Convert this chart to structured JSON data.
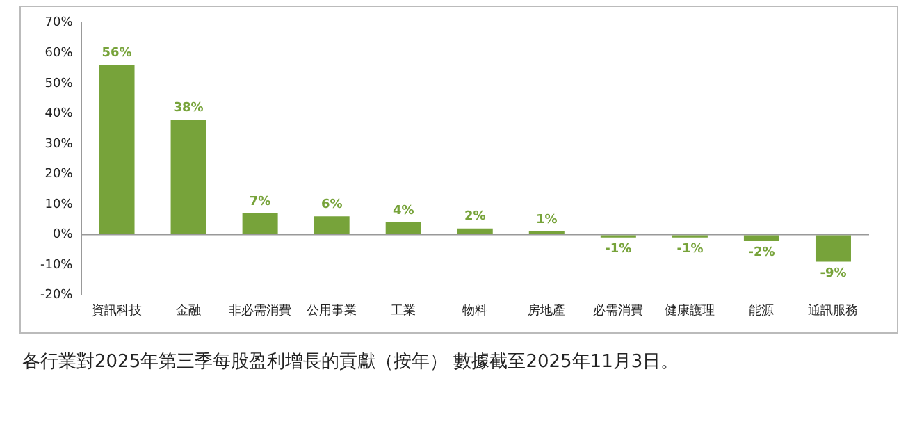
{
  "chart_data": {
    "type": "bar",
    "categories": [
      "資訊科技",
      "金融",
      "非必需消費",
      "公用事業",
      "工業",
      "物料",
      "房地產",
      "必需消費",
      "健康護理",
      "能源",
      "通訊服務"
    ],
    "values": [
      56,
      38,
      7,
      6,
      4,
      2,
      1,
      -1,
      -1,
      -2,
      -9
    ],
    "value_labels": [
      "56%",
      "38%",
      "7%",
      "6%",
      "4%",
      "2%",
      "1%",
      "-1%",
      "-1%",
      "-2%",
      "-9%"
    ],
    "color": "#77a33a",
    "ylim": [
      -20,
      70
    ],
    "yticks": [
      {
        "value": -20,
        "label": "-20%"
      },
      {
        "value": -10,
        "label": "-10%"
      },
      {
        "value": 0,
        "label": "0%"
      },
      {
        "value": 10,
        "label": "10%"
      },
      {
        "value": 20,
        "label": "20%"
      },
      {
        "value": 30,
        "label": "30%"
      },
      {
        "value": 40,
        "label": "40%"
      },
      {
        "value": 50,
        "label": "50%"
      },
      {
        "value": 60,
        "label": "60%"
      },
      {
        "value": 70,
        "label": "70%"
      }
    ],
    "grid": false,
    "ref_lines": [
      {
        "axis": "y",
        "value": 0,
        "color": "#999999"
      }
    ],
    "legend": false,
    "annotations": [
      "各行業對2025年第三季每股盈利增長的貢獻（按年）",
      "數據截至2025年11月3日。"
    ]
  }
}
